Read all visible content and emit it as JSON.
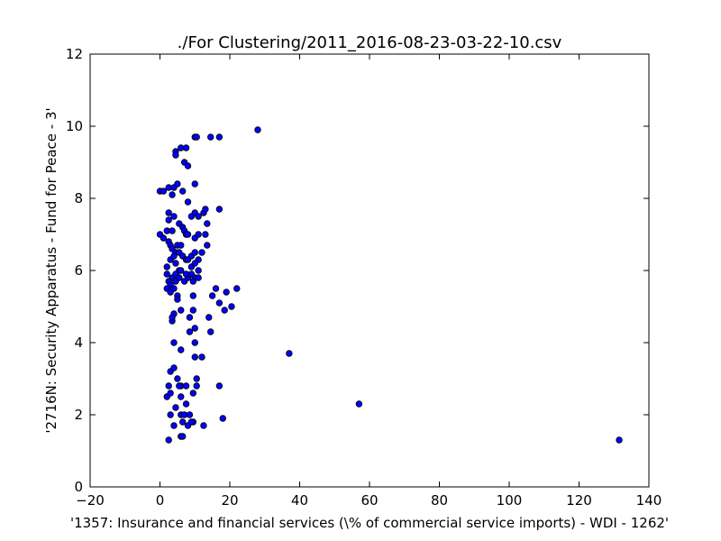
{
  "chart_data": {
    "type": "scatter",
    "title": "./For Clustering/2011_2016-08-23-03-22-10.csv",
    "xlabel": "'1357: Insurance and financial services  (\\% of commercial service imports) - WDI - 1262'",
    "ylabel": "'2716N: Security Apparatus - Fund for Peace - 3'",
    "xlim": [
      -20,
      140
    ],
    "ylim": [
      0,
      12
    ],
    "xticks": [
      "−20",
      "0",
      "20",
      "40",
      "60",
      "80",
      "100",
      "120",
      "140"
    ],
    "yticks": [
      "0",
      "2",
      "4",
      "6",
      "8",
      "10",
      "12"
    ],
    "grid": false,
    "point_color": "#0000ff",
    "points": [
      [
        0,
        8.2
      ],
      [
        1,
        8.2
      ],
      [
        2.5,
        8.3
      ],
      [
        3.5,
        8.1
      ],
      [
        4,
        8.3
      ],
      [
        5,
        8.4
      ],
      [
        6.5,
        8.2
      ],
      [
        10,
        8.4
      ],
      [
        4.5,
        9.3
      ],
      [
        4.5,
        9.2
      ],
      [
        6,
        9.4
      ],
      [
        7.5,
        9.4
      ],
      [
        7,
        9.0
      ],
      [
        8,
        8.9
      ],
      [
        10,
        9.7
      ],
      [
        10.5,
        9.7
      ],
      [
        14.5,
        9.7
      ],
      [
        17,
        9.7
      ],
      [
        28,
        9.9
      ],
      [
        8,
        7.9
      ],
      [
        2.5,
        7.6
      ],
      [
        2.5,
        7.4
      ],
      [
        4,
        7.5
      ],
      [
        5.5,
        7.3
      ],
      [
        6.5,
        7.2
      ],
      [
        7,
        7.1
      ],
      [
        7.5,
        7.0
      ],
      [
        9,
        7.5
      ],
      [
        10,
        7.6
      ],
      [
        11,
        7.5
      ],
      [
        12.5,
        7.6
      ],
      [
        13,
        7.7
      ],
      [
        17,
        7.7
      ],
      [
        0,
        7.0
      ],
      [
        1,
        6.9
      ],
      [
        2,
        7.1
      ],
      [
        3.5,
        7.1
      ],
      [
        5,
        6.7
      ],
      [
        6,
        6.7
      ],
      [
        8,
        7.0
      ],
      [
        10,
        6.9
      ],
      [
        11,
        7.0
      ],
      [
        13,
        7.0
      ],
      [
        13.5,
        7.3
      ],
      [
        13.5,
        6.7
      ],
      [
        2.5,
        6.8
      ],
      [
        3,
        6.7
      ],
      [
        3.5,
        6.6
      ],
      [
        4.5,
        6.5
      ],
      [
        5.5,
        6.5
      ],
      [
        6.5,
        6.4
      ],
      [
        9,
        6.4
      ],
      [
        10,
        6.5
      ],
      [
        11,
        6.3
      ],
      [
        12,
        6.5
      ],
      [
        3,
        6.3
      ],
      [
        4,
        6.4
      ],
      [
        2,
        6.1
      ],
      [
        4.5,
        6.2
      ],
      [
        5.5,
        6.0
      ],
      [
        7.5,
        6.3
      ],
      [
        8,
        6.3
      ],
      [
        9,
        6.1
      ],
      [
        10,
        6.2
      ],
      [
        11,
        6.0
      ],
      [
        2,
        5.9
      ],
      [
        3.5,
        5.8
      ],
      [
        4.5,
        5.9
      ],
      [
        5.5,
        5.8
      ],
      [
        7,
        5.7
      ],
      [
        8,
        5.8
      ],
      [
        9,
        5.9
      ],
      [
        10,
        5.8
      ],
      [
        2.5,
        5.7
      ],
      [
        3,
        5.6
      ],
      [
        4,
        5.5
      ],
      [
        2,
        5.5
      ],
      [
        3,
        5.4
      ],
      [
        4.5,
        5.7
      ],
      [
        6,
        6.0
      ],
      [
        7.5,
        5.9
      ],
      [
        9.5,
        5.7
      ],
      [
        11,
        5.8
      ],
      [
        5,
        5.3
      ],
      [
        9.5,
        5.3
      ],
      [
        15,
        5.3
      ],
      [
        16,
        5.5
      ],
      [
        17,
        5.1
      ],
      [
        19,
        5.4
      ],
      [
        22,
        5.5
      ],
      [
        5,
        5.2
      ],
      [
        6,
        4.9
      ],
      [
        9.5,
        4.9
      ],
      [
        8.5,
        4.7
      ],
      [
        14,
        4.7
      ],
      [
        18.5,
        4.9
      ],
      [
        20.5,
        5.0
      ],
      [
        3.5,
        4.6
      ],
      [
        4,
        4.8
      ],
      [
        3.5,
        4.7
      ],
      [
        8.5,
        4.3
      ],
      [
        10,
        4.4
      ],
      [
        14.5,
        4.3
      ],
      [
        4,
        4.0
      ],
      [
        6,
        3.8
      ],
      [
        10,
        4.0
      ],
      [
        10,
        3.6
      ],
      [
        12,
        3.6
      ],
      [
        37,
        3.7
      ],
      [
        3,
        3.2
      ],
      [
        4,
        3.3
      ],
      [
        5,
        3.0
      ],
      [
        6,
        2.8
      ],
      [
        7.5,
        2.8
      ],
      [
        10.5,
        3.0
      ],
      [
        10.5,
        2.8
      ],
      [
        17,
        2.8
      ],
      [
        2.5,
        2.8
      ],
      [
        2,
        2.5
      ],
      [
        3,
        2.6
      ],
      [
        5.5,
        2.8
      ],
      [
        6,
        2.5
      ],
      [
        9.5,
        2.6
      ],
      [
        7.5,
        2.3
      ],
      [
        3,
        2.0
      ],
      [
        4.5,
        2.2
      ],
      [
        6,
        2.0
      ],
      [
        7,
        2.0
      ],
      [
        8.5,
        2.0
      ],
      [
        9.5,
        1.8
      ],
      [
        18,
        1.9
      ],
      [
        4,
        1.7
      ],
      [
        6.5,
        1.8
      ],
      [
        8,
        1.7
      ],
      [
        9,
        1.8
      ],
      [
        12.5,
        1.7
      ],
      [
        57,
        2.3
      ],
      [
        2.5,
        1.3
      ],
      [
        6,
        1.4
      ],
      [
        6.5,
        1.4
      ],
      [
        131.5,
        1.3
      ]
    ]
  }
}
